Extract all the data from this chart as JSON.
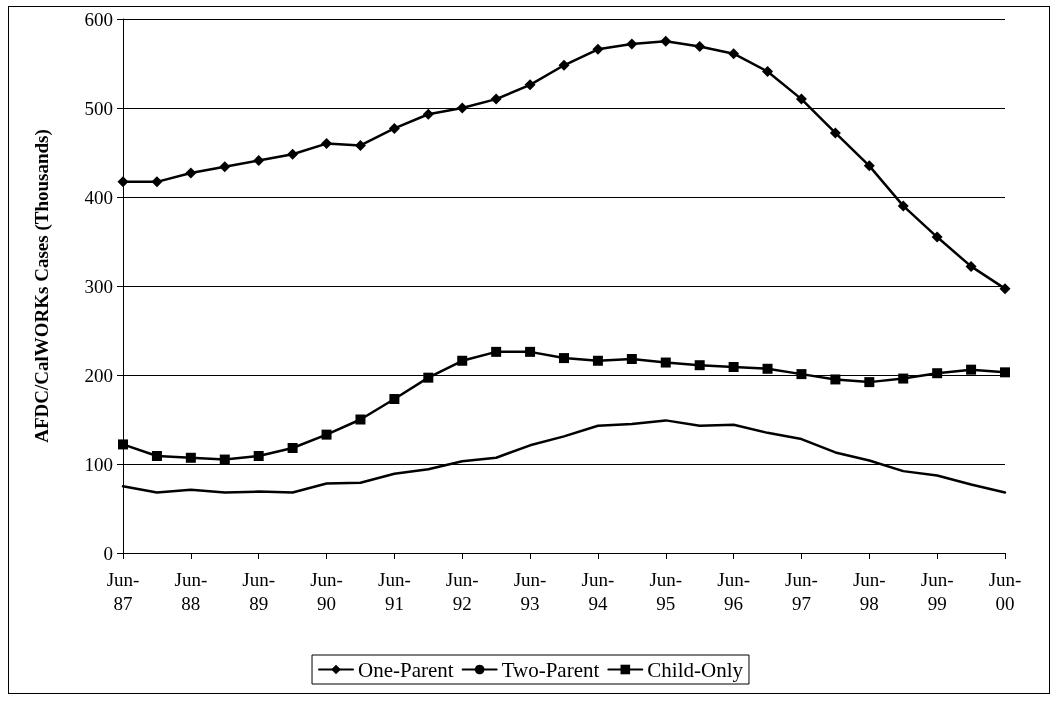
{
  "chart_data": {
    "type": "line",
    "ylabel": "AFDC/CalWORKs Cases (Thousands)",
    "categories": [
      "Jun-87",
      null,
      "Jun-88",
      null,
      "Jun-89",
      null,
      "Jun-90",
      null,
      "Jun-91",
      null,
      "Jun-92",
      null,
      "Jun-93",
      null,
      "Jun-94",
      null,
      "Jun-95",
      null,
      "Jun-96",
      null,
      "Jun-97",
      null,
      "Jun-98",
      null,
      "Jun-99",
      null,
      "Jun-00"
    ],
    "series": [
      {
        "name": "One-Parent",
        "color": "#000000",
        "marker": "diamond",
        "values": [
          417,
          417,
          427,
          434,
          441,
          448,
          460,
          458,
          477,
          493,
          500,
          510,
          526,
          548,
          566,
          572,
          575,
          569,
          561,
          541,
          510,
          472,
          435,
          390,
          355,
          322,
          297
        ]
      },
      {
        "name": "Two-Parent",
        "color": "#000000",
        "marker": "none",
        "values": [
          75,
          68,
          71,
          68,
          69,
          68,
          78,
          79,
          89,
          94,
          103,
          107,
          121,
          131,
          143,
          145,
          149,
          143,
          144,
          135,
          128,
          113,
          104,
          92,
          87,
          77,
          68
        ]
      },
      {
        "name": "Child-Only",
        "color": "#000000",
        "marker": "square",
        "values": [
          122,
          109,
          107,
          105,
          109,
          118,
          133,
          150,
          173,
          197,
          216,
          226,
          226,
          219,
          216,
          218,
          214,
          211,
          209,
          207,
          201,
          195,
          192,
          196,
          202,
          206,
          203
        ]
      }
    ],
    "ylim": [
      0,
      600
    ],
    "yticks": [
      0,
      100,
      200,
      300,
      400,
      500,
      600
    ],
    "grid": "y",
    "legend": "bottom",
    "line_style": "solid"
  }
}
